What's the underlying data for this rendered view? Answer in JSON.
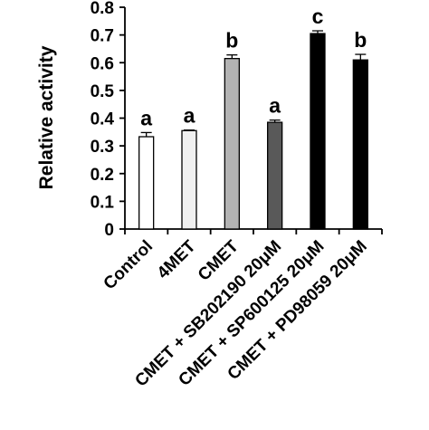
{
  "chart_data": {
    "type": "bar",
    "title": "",
    "xlabel": "",
    "ylabel": "Relative activity",
    "ylim": [
      0,
      0.8
    ],
    "yticks": [
      "0",
      "0.1",
      "0.2",
      "0.3",
      "0.4",
      "0.5",
      "0.6",
      "0.7",
      "0.8"
    ],
    "grid": false,
    "categories": [
      "Control",
      "4MET",
      "CMET",
      "CMET + SB202190 20μM",
      "CMET + SP600125 20μM",
      "CMET + PD98059 20μM"
    ],
    "values": [
      0.333,
      0.355,
      0.615,
      0.385,
      0.705,
      0.61
    ],
    "errors": [
      0.015,
      0.002,
      0.013,
      0.008,
      0.01,
      0.02
    ],
    "significance_labels": [
      "a",
      "a",
      "b",
      "a",
      "c",
      "b"
    ],
    "colors": [
      "#ffffff",
      "#f0f0f0",
      "#b3b3b3",
      "#595959",
      "#000000",
      "#000000"
    ],
    "edge_color": "#000000"
  }
}
